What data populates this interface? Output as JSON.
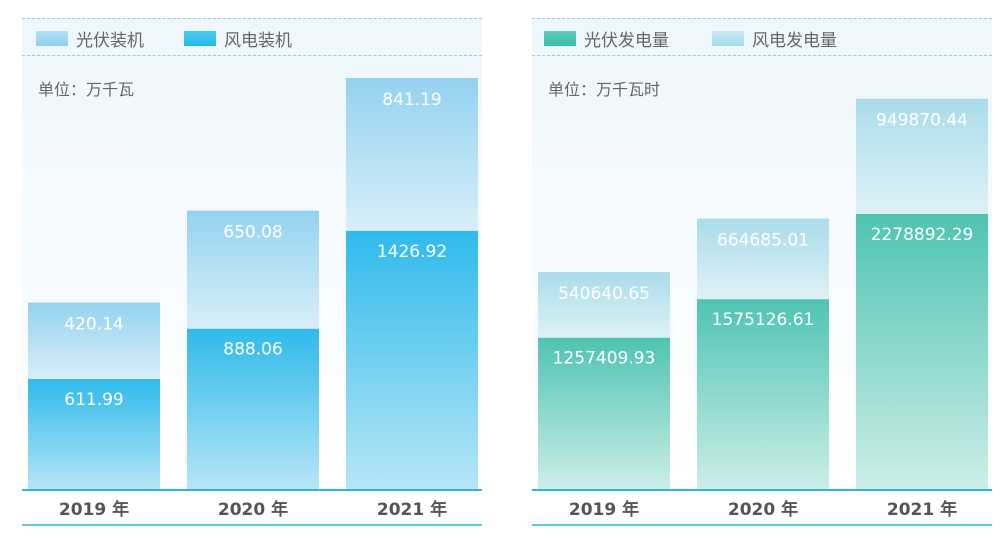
{
  "colors": {
    "left_top": "#9dd6f2",
    "left_bottom": "#35c0ee",
    "right_top": "#b7e3ef",
    "right_bottom": "#52c7b6",
    "axis": "#2fb6d3",
    "dash": "#8fd0e6"
  },
  "chart_data": [
    {
      "type": "bar",
      "stacked": true,
      "legend": [
        "光伏装机",
        "风电装机"
      ],
      "unit": "单位：万千瓦",
      "categories": [
        "2019 年",
        "2020 年",
        "2021 年"
      ],
      "series": [
        {
          "name": "风电装机",
          "values": [
            611.99,
            888.06,
            1426.92
          ],
          "labels": [
            "611.99",
            "888.06",
            "1426.92"
          ]
        },
        {
          "name": "光伏装机",
          "values": [
            420.14,
            650.08,
            841.19
          ],
          "labels": [
            "420.14",
            "650.08",
            "841.19"
          ]
        }
      ],
      "ylim": [
        0,
        2268.11
      ],
      "grid": false,
      "legend_placement": "top-left"
    },
    {
      "type": "bar",
      "stacked": true,
      "legend": [
        "光伏发电量",
        "风电发电量"
      ],
      "unit": "单位：万千瓦时",
      "categories": [
        "2019 年",
        "2020 年",
        "2021 年"
      ],
      "series": [
        {
          "name": "光伏发电量",
          "values": [
            1257409.93,
            1575126.61,
            2278892.29
          ],
          "labels": [
            "1257409.93",
            "1575126.61",
            "2278892.29"
          ]
        },
        {
          "name": "风电发电量",
          "values": [
            540640.65,
            664685.01,
            949870.44
          ],
          "labels": [
            "540640.65",
            "664685.01",
            "949870.44"
          ]
        }
      ],
      "ylim": [
        0,
        3400000
      ],
      "grid": false,
      "legend_placement": "top-left"
    }
  ]
}
